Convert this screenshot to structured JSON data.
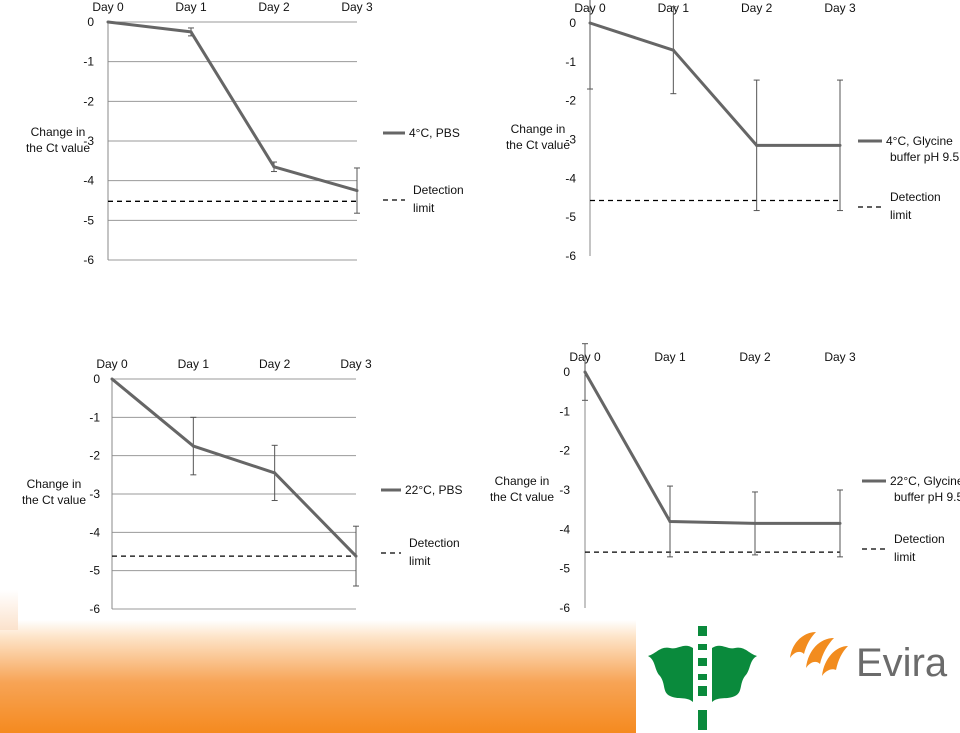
{
  "colors": {
    "series": "#666666",
    "detection": "#000000",
    "grid": "#9a9a9a",
    "brand_orange": "#f28c1e",
    "uh_green": "#0a8a3c",
    "evira_gray": "#6b6b6b"
  },
  "icons": {
    "university_logo": "flame-emblem-icon",
    "evira_logo": "evira-swoosh-icon"
  },
  "logo": {
    "evira_text": "Evira"
  },
  "chart_data": [
    {
      "type": "line",
      "categories": [
        "Day 0",
        "Day 1",
        "Day 2",
        "Day 3"
      ],
      "ylabel": "Change in the Ct value",
      "ylim": [
        -6,
        0
      ],
      "yticks": [
        "0",
        "-1",
        "-2",
        "-3",
        "-4",
        "-5",
        "-6"
      ],
      "series": [
        {
          "name": "4°C, PBS",
          "values": [
            0,
            -0.25,
            -3.65,
            -4.25
          ],
          "errors": [
            0,
            0.1,
            0.12,
            0.57
          ]
        }
      ],
      "detection_limit": {
        "name": "Detection limit",
        "value": -4.52
      },
      "grid": true,
      "legend": "right"
    },
    {
      "type": "line",
      "categories": [
        "Day 0",
        "Day 1",
        "Day 2",
        "Day 3"
      ],
      "ylabel": "Change in the Ct value",
      "ylim": [
        -6,
        0
      ],
      "yticks": [
        "0",
        "-1",
        "-2",
        "-3",
        "-4",
        "-5",
        "-6"
      ],
      "series": [
        {
          "name": "4°C, Glycine buffer pH 9.5",
          "values": [
            0,
            -0.7,
            -3.15,
            -3.15
          ],
          "errors": [
            1.7,
            1.12,
            1.68,
            1.68
          ]
        }
      ],
      "detection_limit": {
        "name": "Detection limit",
        "value": -4.57
      },
      "grid": false,
      "legend": "right"
    },
    {
      "type": "line",
      "categories": [
        "Day 0",
        "Day 1",
        "Day 2",
        "Day 3"
      ],
      "ylabel": "Change in the Ct value",
      "ylim": [
        -6,
        0
      ],
      "yticks": [
        "0",
        "-1",
        "-2",
        "-3",
        "-4",
        "-5",
        "-6"
      ],
      "series": [
        {
          "name": "22°C, PBS",
          "values": [
            0,
            -1.75,
            -2.45,
            -4.62
          ],
          "errors": [
            0,
            0.75,
            0.72,
            0.78
          ]
        }
      ],
      "detection_limit": {
        "name": "Detection limit",
        "value": -4.62
      },
      "grid": true,
      "legend": "right"
    },
    {
      "type": "line",
      "categories": [
        "Day 0",
        "Day 1",
        "Day 2",
        "Day 3"
      ],
      "ylabel": "Change in the Ct value",
      "ylim": [
        -6,
        0
      ],
      "yticks": [
        "0",
        "-1",
        "-2",
        "-3",
        "-4",
        "-5",
        "-6"
      ],
      "series": [
        {
          "name": "22°C, Glycine buffer pH 9.5",
          "values": [
            0,
            -3.8,
            -3.85,
            -3.85
          ],
          "errors": [
            0.72,
            0.9,
            0.8,
            0.85
          ]
        }
      ],
      "detection_limit": {
        "name": "Detection limit",
        "value": -4.58
      },
      "grid": false,
      "legend": "right"
    }
  ]
}
